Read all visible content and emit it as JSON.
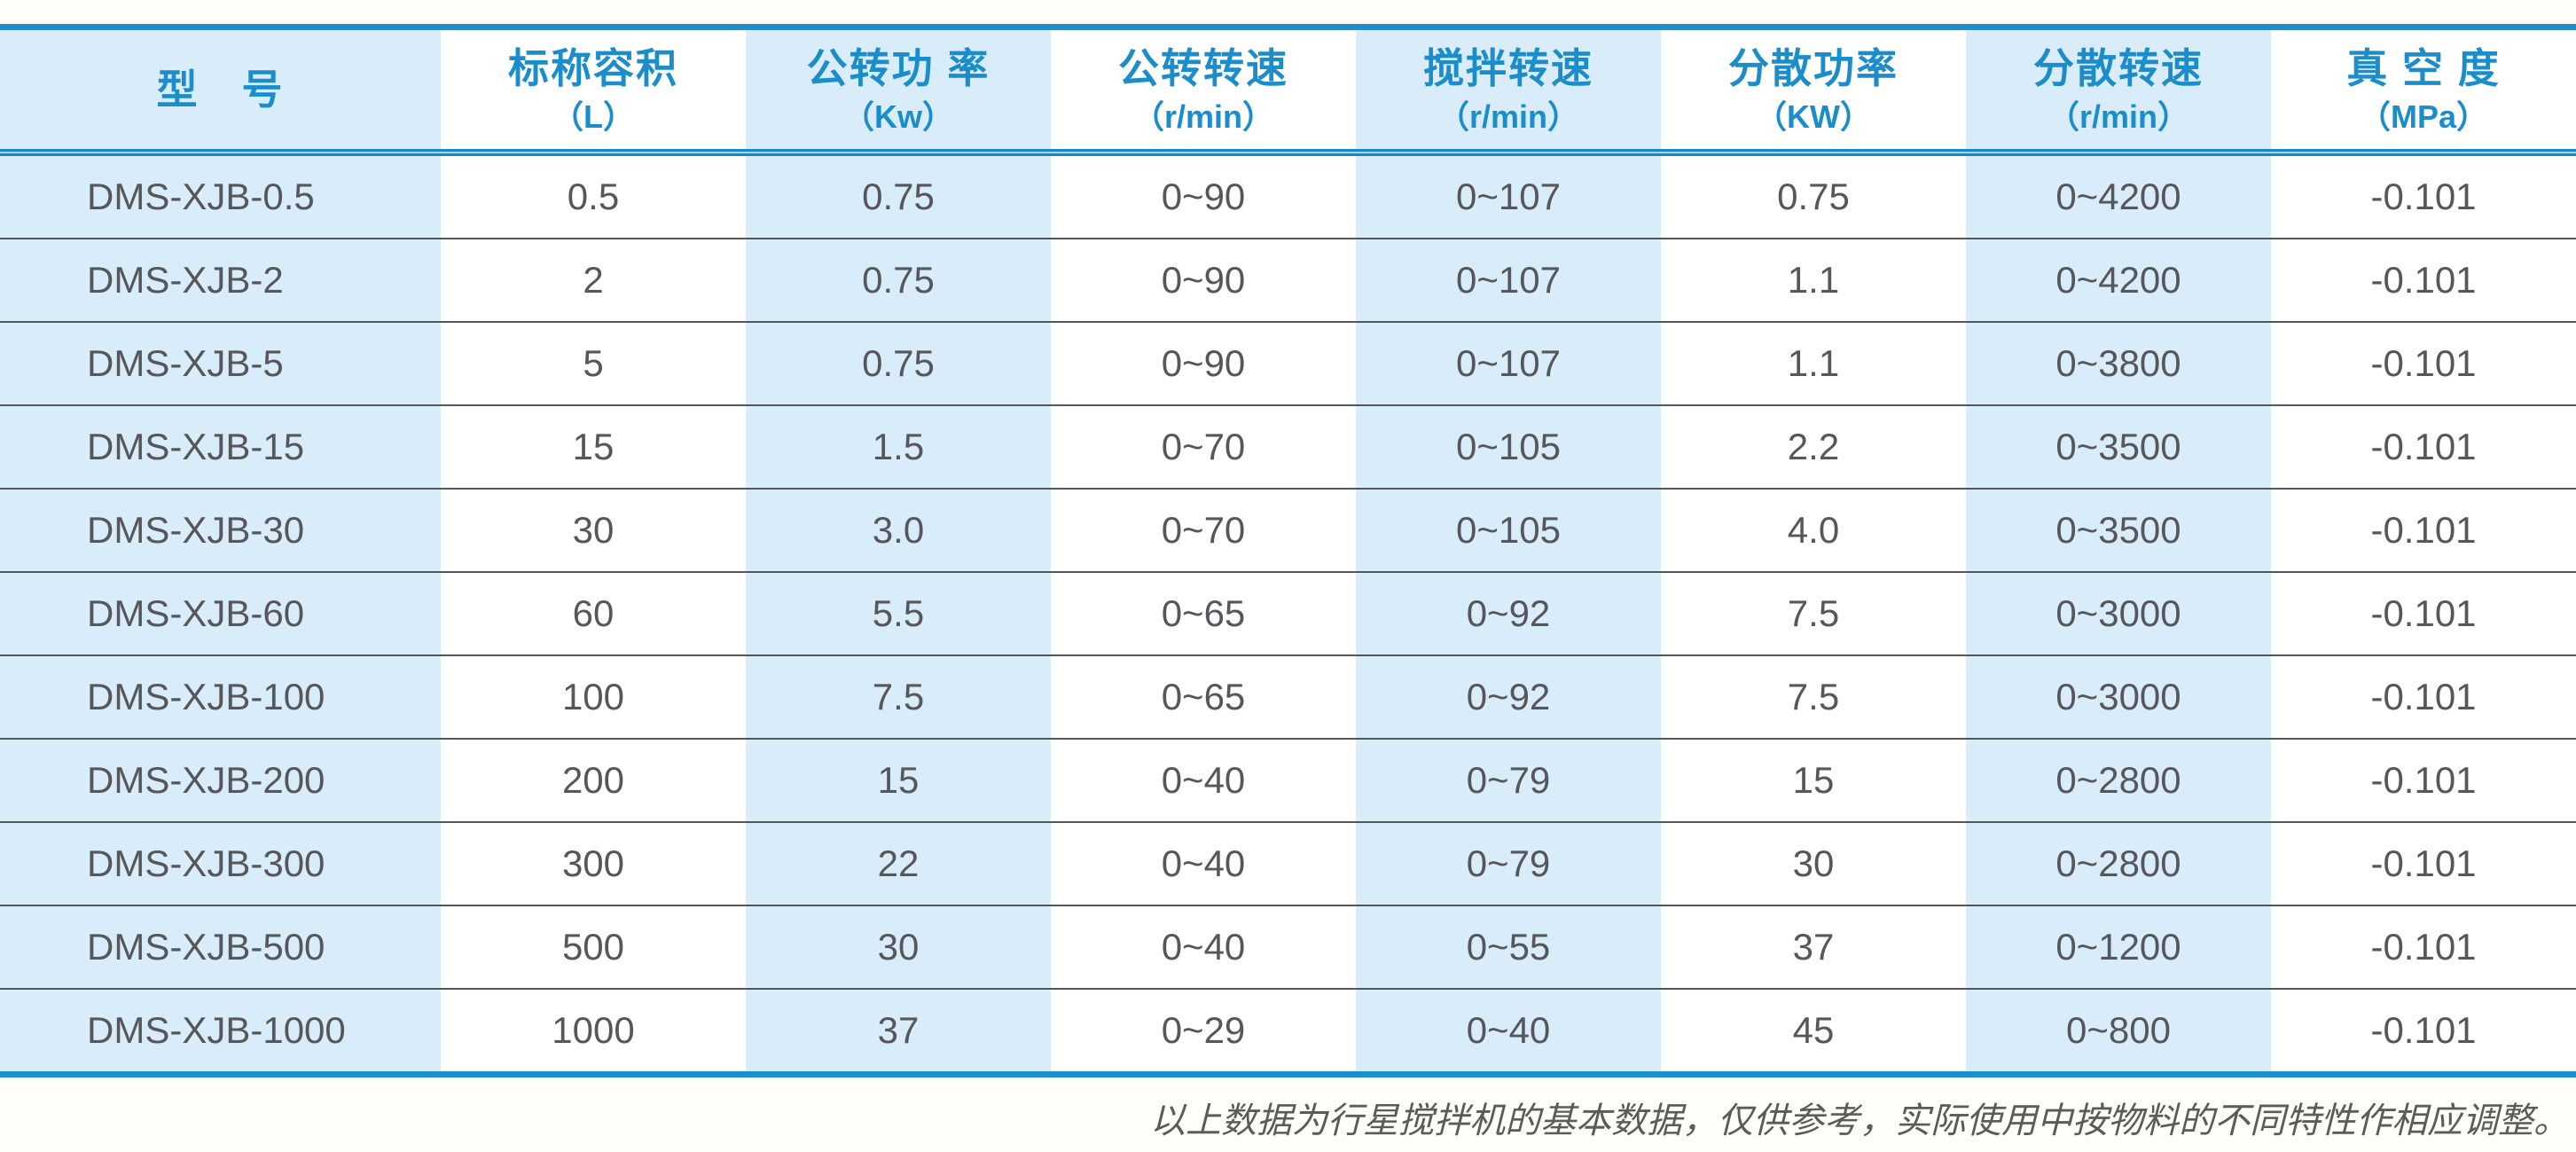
{
  "colors": {
    "accent_blue": "#1b8dcb",
    "border_blue": "#1c90cf",
    "rule_light_blue": "#a5d8f2",
    "column_shade": "#d9ecf9",
    "body_text": "#56575b",
    "row_line": "#55565a"
  },
  "table": {
    "columns": [
      {
        "name": "型　号",
        "unit": ""
      },
      {
        "name": "标称容积",
        "unit": "（L）"
      },
      {
        "name": "公转功 率",
        "unit": "（Kw）"
      },
      {
        "name": "公转转速",
        "unit": "（r/min）"
      },
      {
        "name": "搅拌转速",
        "unit": "（r/min）"
      },
      {
        "name": "分散功率",
        "unit": "（KW）"
      },
      {
        "name": "分散转速",
        "unit": "（r/min）"
      },
      {
        "name": "真 空 度",
        "unit": "（MPa）"
      }
    ],
    "rows": [
      [
        "DMS-XJB-0.5",
        "0.5",
        "0.75",
        "0~90",
        "0~107",
        "0.75",
        "0~4200",
        "-0.101"
      ],
      [
        "DMS-XJB-2",
        "2",
        "0.75",
        "0~90",
        "0~107",
        "1.1",
        "0~4200",
        "-0.101"
      ],
      [
        "DMS-XJB-5",
        "5",
        "0.75",
        "0~90",
        "0~107",
        "1.1",
        "0~3800",
        "-0.101"
      ],
      [
        "DMS-XJB-15",
        "15",
        "1.5",
        "0~70",
        "0~105",
        "2.2",
        "0~3500",
        "-0.101"
      ],
      [
        "DMS-XJB-30",
        "30",
        "3.0",
        "0~70",
        "0~105",
        "4.0",
        "0~3500",
        "-0.101"
      ],
      [
        "DMS-XJB-60",
        "60",
        "5.5",
        "0~65",
        "0~92",
        "7.5",
        "0~3000",
        "-0.101"
      ],
      [
        "DMS-XJB-100",
        "100",
        "7.5",
        "0~65",
        "0~92",
        "7.5",
        "0~3000",
        "-0.101"
      ],
      [
        "DMS-XJB-200",
        "200",
        "15",
        "0~40",
        "0~79",
        "15",
        "0~2800",
        "-0.101"
      ],
      [
        "DMS-XJB-300",
        "300",
        "22",
        "0~40",
        "0~79",
        "30",
        "0~2800",
        "-0.101"
      ],
      [
        "DMS-XJB-500",
        "500",
        "30",
        "0~40",
        "0~55",
        "37",
        "0~1200",
        "-0.101"
      ],
      [
        "DMS-XJB-1000",
        "1000",
        "37",
        "0~29",
        "0~40",
        "45",
        "0~800",
        "-0.101"
      ]
    ]
  },
  "chart_data": {
    "type": "table",
    "title": "",
    "columns": [
      "型号",
      "标称容积（L）",
      "公转功率（Kw）",
      "公转转速（r/min）",
      "搅拌转速（r/min）",
      "分散功率（KW）",
      "分散转速（r/min）",
      "真空度（MPa）"
    ],
    "rows": [
      [
        "DMS-XJB-0.5",
        "0.5",
        "0.75",
        "0~90",
        "0~107",
        "0.75",
        "0~4200",
        "-0.101"
      ],
      [
        "DMS-XJB-2",
        "2",
        "0.75",
        "0~90",
        "0~107",
        "1.1",
        "0~4200",
        "-0.101"
      ],
      [
        "DMS-XJB-5",
        "5",
        "0.75",
        "0~90",
        "0~107",
        "1.1",
        "0~3800",
        "-0.101"
      ],
      [
        "DMS-XJB-15",
        "15",
        "1.5",
        "0~70",
        "0~105",
        "2.2",
        "0~3500",
        "-0.101"
      ],
      [
        "DMS-XJB-30",
        "30",
        "3.0",
        "0~70",
        "0~105",
        "4.0",
        "0~3500",
        "-0.101"
      ],
      [
        "DMS-XJB-60",
        "60",
        "5.5",
        "0~65",
        "0~92",
        "7.5",
        "0~3000",
        "-0.101"
      ],
      [
        "DMS-XJB-100",
        "100",
        "7.5",
        "0~65",
        "0~92",
        "7.5",
        "0~3000",
        "-0.101"
      ],
      [
        "DMS-XJB-200",
        "200",
        "15",
        "0~40",
        "0~79",
        "15",
        "0~2800",
        "-0.101"
      ],
      [
        "DMS-XJB-300",
        "300",
        "22",
        "0~40",
        "0~79",
        "30",
        "0~2800",
        "-0.101"
      ],
      [
        "DMS-XJB-500",
        "500",
        "30",
        "0~40",
        "0~55",
        "37",
        "0~1200",
        "-0.101"
      ],
      [
        "DMS-XJB-1000",
        "1000",
        "37",
        "0~29",
        "0~40",
        "45",
        "0~800",
        "-0.101"
      ]
    ]
  },
  "footer": {
    "note": "以上数据为行星搅拌机的基本数据，仅供参考，实际使用中按物料的不同特性作相应调整。"
  }
}
